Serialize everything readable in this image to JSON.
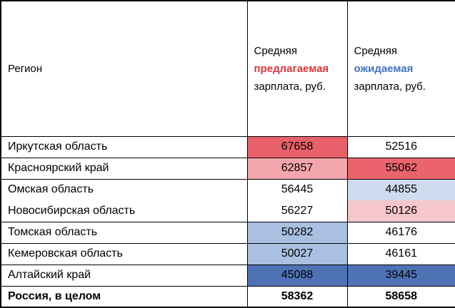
{
  "chart_data": {
    "type": "table",
    "title": "",
    "columns": [
      "Регион",
      "Средняя предлагаемая зарплата, руб.",
      "Средняя ожидаемая зарплата, руб."
    ],
    "rows": [
      [
        "Иркутская область",
        67658,
        52516
      ],
      [
        "Красноярский край",
        62857,
        55062
      ],
      [
        "Омская область",
        56445,
        44855
      ],
      [
        "Новосибирская область",
        56227,
        50126
      ],
      [
        "Томская область",
        50282,
        46176
      ],
      [
        "Кемеровская область",
        50027,
        46161
      ],
      [
        "Алтайский край",
        45088,
        39445
      ],
      [
        "Россия, в целом",
        58362,
        58658
      ]
    ],
    "legend_position": "none",
    "notes": "conditional color scale: red = high value, white = middle, blue = low value, applied per column"
  },
  "table": {
    "header": {
      "region": "Регион",
      "offered": {
        "line1": "Средняя",
        "line2": "предлагаемая",
        "line3": "зарплата, руб."
      },
      "expected": {
        "line1": "Средняя",
        "line2": "ожидаемая",
        "line3": "зарплата, руб."
      }
    },
    "rows": [
      {
        "region": "Иркутская область",
        "offered": "67658",
        "expected": "52516",
        "offered_bg": "#e8606a",
        "expected_bg": "#ffffff"
      },
      {
        "region": "Красноярский край",
        "offered": "62857",
        "expected": "55062",
        "offered_bg": "#f4a6ad",
        "expected_bg": "#ea636d"
      },
      {
        "region": "Омская область",
        "offered": "56445",
        "expected": "44855",
        "offered_bg": "#ffffff",
        "expected_bg": "#cfdcef"
      },
      {
        "region": "Новосибирская область",
        "offered": "56227",
        "expected": "50126",
        "offered_bg": "#ffffff",
        "expected_bg": "#f5c6cb"
      },
      {
        "region": "Томская область",
        "offered": "50282",
        "expected": "46176",
        "offered_bg": "#a9c0e1",
        "expected_bg": "#ffffff"
      },
      {
        "region": "Кемеровская область",
        "offered": "50027",
        "expected": "46161",
        "offered_bg": "#a9c0e1",
        "expected_bg": "#ffffff"
      },
      {
        "region": "Алтайский край",
        "offered": "45088",
        "expected": "39445",
        "offered_bg": "#4f72b5",
        "expected_bg": "#4f72b5"
      },
      {
        "region": "Россия, в целом",
        "offered": "58362",
        "expected": "58658",
        "offered_bg": "#ffffff",
        "expected_bg": "#ffffff"
      }
    ]
  },
  "colors": {
    "offered_accent": "#e0343c",
    "expected_accent": "#4472c4",
    "scale_red_strong": "#e8606a",
    "scale_red_light": "#f5c6cb",
    "scale_blue_strong": "#4f72b5",
    "scale_blue_light": "#cfdcef",
    "border": "#000000"
  }
}
